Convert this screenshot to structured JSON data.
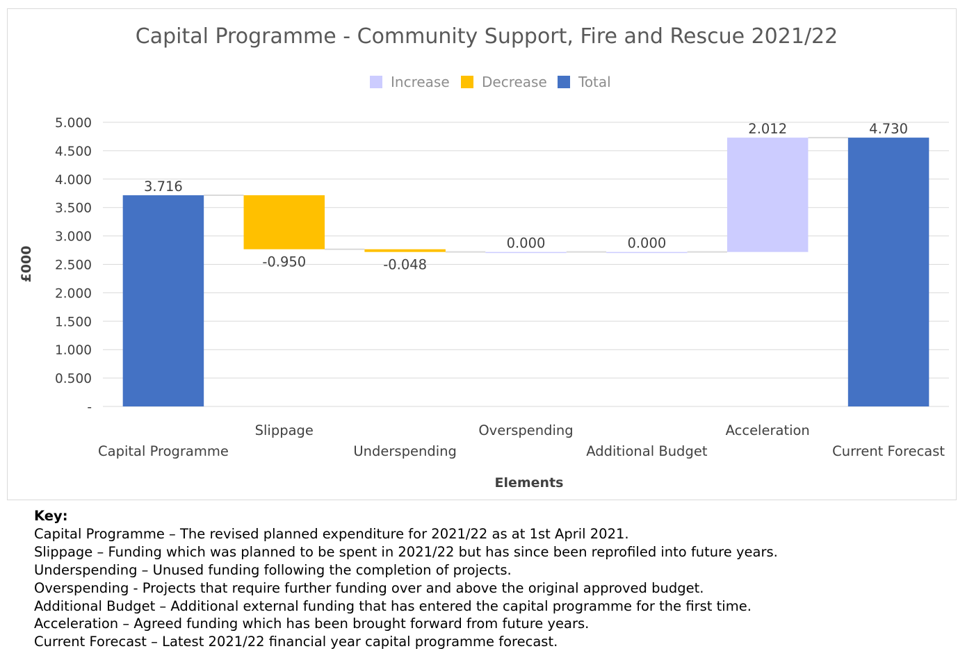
{
  "chart_data": {
    "type": "bar",
    "subtype": "waterfall",
    "title": "Capital Programme - Community Support, Fire and Rescue 2021/22",
    "xlabel": "Elements",
    "ylabel": "£000",
    "ylim": [
      0,
      5
    ],
    "yticks": [
      {
        "value": 0,
        "label": "-"
      },
      {
        "value": 0.5,
        "label": "0.500"
      },
      {
        "value": 1,
        "label": "1.000"
      },
      {
        "value": 1.5,
        "label": "1.500"
      },
      {
        "value": 2,
        "label": "2.000"
      },
      {
        "value": 2.5,
        "label": "2.500"
      },
      {
        "value": 3,
        "label": "3.000"
      },
      {
        "value": 3.5,
        "label": "3.500"
      },
      {
        "value": 4,
        "label": "4.000"
      },
      {
        "value": 4.5,
        "label": "4.500"
      },
      {
        "value": 5,
        "label": "5.000"
      }
    ],
    "grid": true,
    "legend_position": "top-center",
    "legend": [
      {
        "name": "Increase",
        "color": "#ccccff"
      },
      {
        "name": "Decrease",
        "color": "#ffc000"
      },
      {
        "name": "Total",
        "color": "#4472c4"
      }
    ],
    "categories": [
      "Capital Programme",
      "Slippage",
      "Underspending",
      "Overspending",
      "Additional Budget",
      "Acceleration",
      "Current Forecast"
    ],
    "values": [
      3.716,
      -0.95,
      -0.048,
      0.0,
      0.0,
      2.012,
      4.73
    ],
    "kinds": [
      "total",
      "decrease",
      "decrease",
      "increase",
      "increase",
      "increase",
      "total"
    ],
    "data_labels": [
      "3.716",
      "-0.950",
      "-0.048",
      "0.000",
      "0.000",
      "2.012",
      "4.730"
    ]
  },
  "key": {
    "heading": "Key:",
    "lines": [
      "Capital Programme – The revised planned expenditure for 2021/22 as at 1st April 2021.",
      "Slippage – Funding which was planned to be spent in 2021/22 but has since been reprofiled into future years.",
      "Underspending – Unused funding following the completion of projects.",
      "Overspending - Projects that require further funding over and above the original approved budget.",
      "Additional Budget – Additional external funding that has entered the capital programme for the first time.",
      "Acceleration – Agreed funding which has been brought forward from future years.",
      "Current Forecast – Latest 2021/22 financial year capital programme forecast."
    ]
  }
}
